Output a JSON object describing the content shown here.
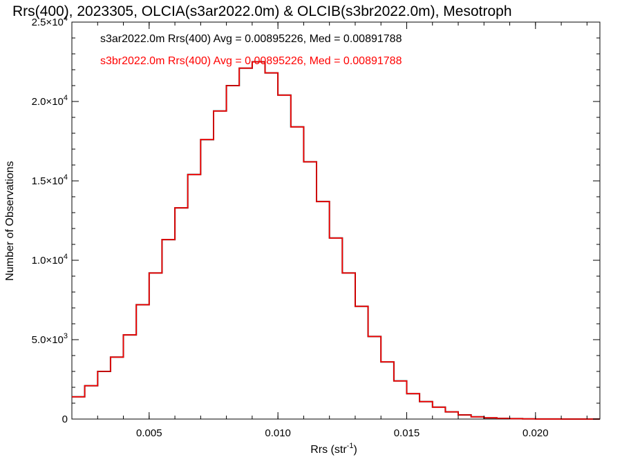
{
  "chart_data": {
    "type": "line",
    "step": true,
    "title": "Rrs(400), 2023305, OLCIA(s3ar2022.0m) & OLCIB(s3br2022.0m), Mesotroph",
    "xlabel": "Rrs (str",
    "xlabel_sup": "-1",
    "xlabel_close": ")",
    "ylabel": "Number of Observations",
    "xlim": [
      0.002,
      0.0225
    ],
    "ylim": [
      0,
      25000
    ],
    "grid": false,
    "x_ticks": [
      {
        "value": 0.005,
        "label": "0.005"
      },
      {
        "value": 0.01,
        "label": "0.010"
      },
      {
        "value": 0.015,
        "label": "0.015"
      },
      {
        "value": 0.02,
        "label": "0.020"
      }
    ],
    "y_ticks": [
      {
        "value": 0,
        "mant": "0",
        "exp": ""
      },
      {
        "value": 5000,
        "mant": "5.0×10",
        "exp": "3"
      },
      {
        "value": 10000,
        "mant": "1.0×10",
        "exp": "4"
      },
      {
        "value": 15000,
        "mant": "1.5×10",
        "exp": "4"
      },
      {
        "value": 20000,
        "mant": "2.0×10",
        "exp": "4"
      },
      {
        "value": 25000,
        "mant": "2.5×10",
        "exp": "4"
      }
    ],
    "legend": [
      {
        "text": "s3ar2022.0m Rrs(400) Avg = 0.00895226, Med = 0.00891788",
        "color": "#000000"
      },
      {
        "text": "s3br2022.0m Rrs(400) Avg = 0.00895226, Med = 0.00891788",
        "color": "#ff0000"
      }
    ],
    "series": [
      {
        "name": "s3ar2022.0m",
        "color": "#000000",
        "x": [
          0.002,
          0.0025,
          0.003,
          0.0035,
          0.004,
          0.0045,
          0.005,
          0.0055,
          0.006,
          0.0065,
          0.007,
          0.0075,
          0.008,
          0.0085,
          0.009,
          0.0095,
          0.01,
          0.0105,
          0.011,
          0.0115,
          0.012,
          0.0125,
          0.013,
          0.0135,
          0.014,
          0.0145,
          0.015,
          0.0155,
          0.016,
          0.0165,
          0.017,
          0.0175,
          0.018,
          0.0185,
          0.019,
          0.0195,
          0.02,
          0.021,
          0.0225
        ],
        "y": [
          1400,
          2100,
          3000,
          3900,
          5300,
          7200,
          9200,
          11300,
          13300,
          15400,
          17600,
          19400,
          21000,
          22100,
          22500,
          21800,
          20400,
          18400,
          16200,
          13700,
          11400,
          9200,
          7100,
          5200,
          3600,
          2400,
          1600,
          1100,
          750,
          450,
          260,
          140,
          80,
          45,
          25,
          12,
          6,
          2,
          0
        ]
      },
      {
        "name": "s3br2022.0m",
        "color": "#ff0000",
        "x": [
          0.002,
          0.0025,
          0.003,
          0.0035,
          0.004,
          0.0045,
          0.005,
          0.0055,
          0.006,
          0.0065,
          0.007,
          0.0075,
          0.008,
          0.0085,
          0.009,
          0.0095,
          0.01,
          0.0105,
          0.011,
          0.0115,
          0.012,
          0.0125,
          0.013,
          0.0135,
          0.014,
          0.0145,
          0.015,
          0.0155,
          0.016,
          0.0165,
          0.017,
          0.0175,
          0.018,
          0.0185,
          0.019,
          0.0195,
          0.02,
          0.021,
          0.0225
        ],
        "y": [
          1400,
          2100,
          3000,
          3900,
          5300,
          7200,
          9200,
          11300,
          13300,
          15400,
          17600,
          19400,
          21000,
          22100,
          22500,
          21800,
          20400,
          18400,
          16200,
          13700,
          11400,
          9200,
          7100,
          5200,
          3600,
          2400,
          1600,
          1100,
          750,
          450,
          260,
          140,
          80,
          45,
          25,
          12,
          6,
          2,
          0
        ]
      }
    ]
  }
}
